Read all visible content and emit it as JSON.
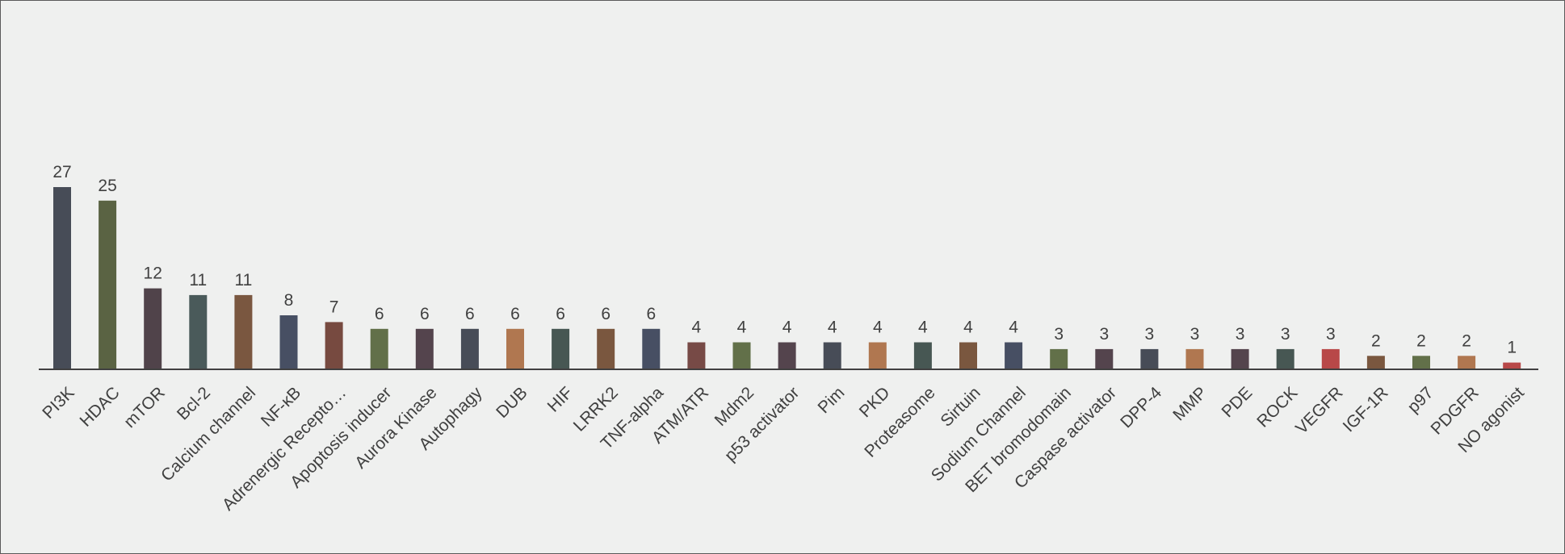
{
  "chart_data": {
    "type": "bar",
    "title": "",
    "xlabel": "",
    "ylabel": "",
    "ylim": [
      0,
      30
    ],
    "grid": false,
    "legend": "none",
    "categories": [
      "PI3K",
      "HDAC",
      "mTOR",
      "Bcl-2",
      "Calcium channel",
      "NF-κB",
      "Adrenergic Recepto…",
      "Apoptosis inducer",
      "Aurora Kinase",
      "Autophagy",
      "DUB",
      "HIF",
      "LRRK2",
      "TNF-alpha",
      "ATM/ATR",
      "Mdm2",
      "p53 activator",
      "Pim",
      "PKD",
      "Proteasome",
      "Sirtuin",
      "Sodium Channel",
      "BET bromodomain",
      "Caspase activator",
      "DPP-4",
      "MMP",
      "PDE",
      "ROCK",
      "VEGFR",
      "IGF-1R",
      "p97",
      "PDGFR",
      "NO agonist"
    ],
    "values": [
      27,
      25,
      12,
      11,
      11,
      8,
      7,
      6,
      6,
      6,
      6,
      6,
      6,
      6,
      4,
      4,
      4,
      4,
      4,
      4,
      4,
      4,
      3,
      3,
      3,
      3,
      3,
      3,
      3,
      2,
      2,
      2,
      1
    ],
    "value_labels": [
      "27",
      "25",
      "12",
      "11",
      "11",
      "8",
      "7",
      "6",
      "6",
      "6",
      "6",
      "6",
      "6",
      "6",
      "4",
      "4",
      "4",
      "4",
      "4",
      "4",
      "4",
      "4",
      "3",
      "3",
      "3",
      "3",
      "3",
      "3",
      "3",
      "2",
      "2",
      "2",
      "1"
    ],
    "colors": [
      "#474c57",
      "#5a6343",
      "#50434a",
      "#4a5a5a",
      "#7a5740",
      "#474f63",
      "#774a40",
      "#627049",
      "#54444d",
      "#474c57",
      "#b07750",
      "#475753",
      "#7a573f",
      "#474f63",
      "#774a46",
      "#627049",
      "#54444d",
      "#474c57",
      "#b07750",
      "#475753",
      "#7a573f",
      "#474f63",
      "#627049",
      "#54444d",
      "#474c57",
      "#b07750",
      "#54444d",
      "#475753",
      "#b84848",
      "#7a573f",
      "#627049",
      "#b07750",
      "#b84848"
    ],
    "axis_color": "#404040"
  }
}
